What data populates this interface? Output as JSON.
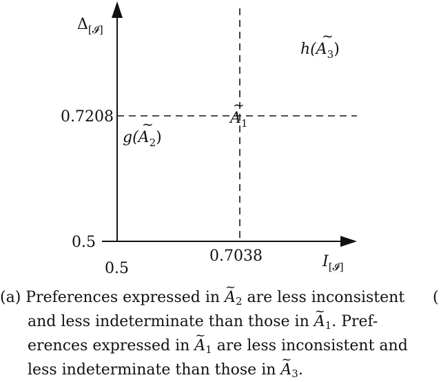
{
  "diagram": {
    "x_axis": {
      "label": "I",
      "label_sub": "[𝓘]",
      "origin_tick": "0.5",
      "tick": "0.7038"
    },
    "y_axis": {
      "label": "Δ",
      "label_sub": "[𝓘]",
      "origin_tick": "0.5",
      "tick": "0.7208"
    },
    "points": [
      {
        "id": "A1",
        "base": "A",
        "sub": "1",
        "label": "h(Ã3)"
      },
      {
        "id": "A2",
        "func": "g",
        "base": "A",
        "sub": "2"
      },
      {
        "id": "A3",
        "func": "h",
        "base": "A",
        "sub": "3"
      }
    ],
    "text": {
      "a1_base": "A",
      "a1_sub": "1",
      "g_func": "g(",
      "g_base": "A",
      "g_sub": "2",
      "g_close": ")",
      "h_func": "h(",
      "h_base": "A",
      "h_sub": "3",
      "h_close": ")"
    }
  },
  "caption": {
    "tag": "(a)",
    "line1_a": "Preferences expressed in ",
    "line1_m": "A",
    "line1_sub": "2",
    "line1_b": " are less inconsistent",
    "line2_a": "and less indeterminate than those in ",
    "line2_m": "A",
    "line2_sub": "1",
    "line2_b": ".  Pref-",
    "line3_a": "erences expressed in ",
    "line3_m": "A",
    "line3_sub": "1",
    "line3_b": " are less inconsistent and",
    "line4_a": "less indeterminate than those in ",
    "line4_m": "A",
    "line4_sub": "3",
    "line4_b": ".",
    "right_edge": "("
  }
}
